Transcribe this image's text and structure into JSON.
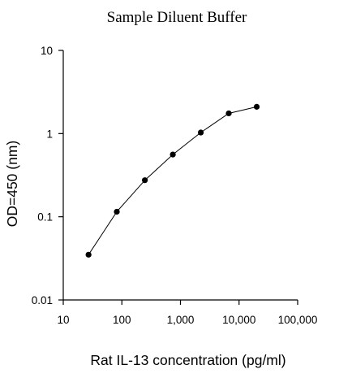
{
  "chart_data": {
    "type": "scatter",
    "title": "Sample Diluent Buffer",
    "xlabel": "Rat IL-13 concentration (pg/ml)",
    "ylabel": "OD=450 (nm)",
    "x_scale": "log",
    "y_scale": "log",
    "xlim": [
      10,
      100000
    ],
    "ylim": [
      0.01,
      10
    ],
    "x_ticks": [
      10,
      100,
      1000,
      10000,
      100000
    ],
    "x_tick_labels": [
      "10",
      "100",
      "1,000",
      "10,000",
      "100,000"
    ],
    "y_ticks": [
      0.01,
      0.1,
      1,
      10
    ],
    "y_tick_labels": [
      "0.01",
      "0.1",
      "1",
      "10"
    ],
    "grid": false,
    "legend": "none",
    "series": [
      {
        "x": [
          27,
          82,
          247,
          741,
          2222,
          6667,
          20000
        ],
        "y": [
          0.035,
          0.115,
          0.275,
          0.56,
          1.03,
          1.75,
          2.1
        ],
        "marker": "circle",
        "connected": true,
        "color": "#000000"
      }
    ]
  }
}
